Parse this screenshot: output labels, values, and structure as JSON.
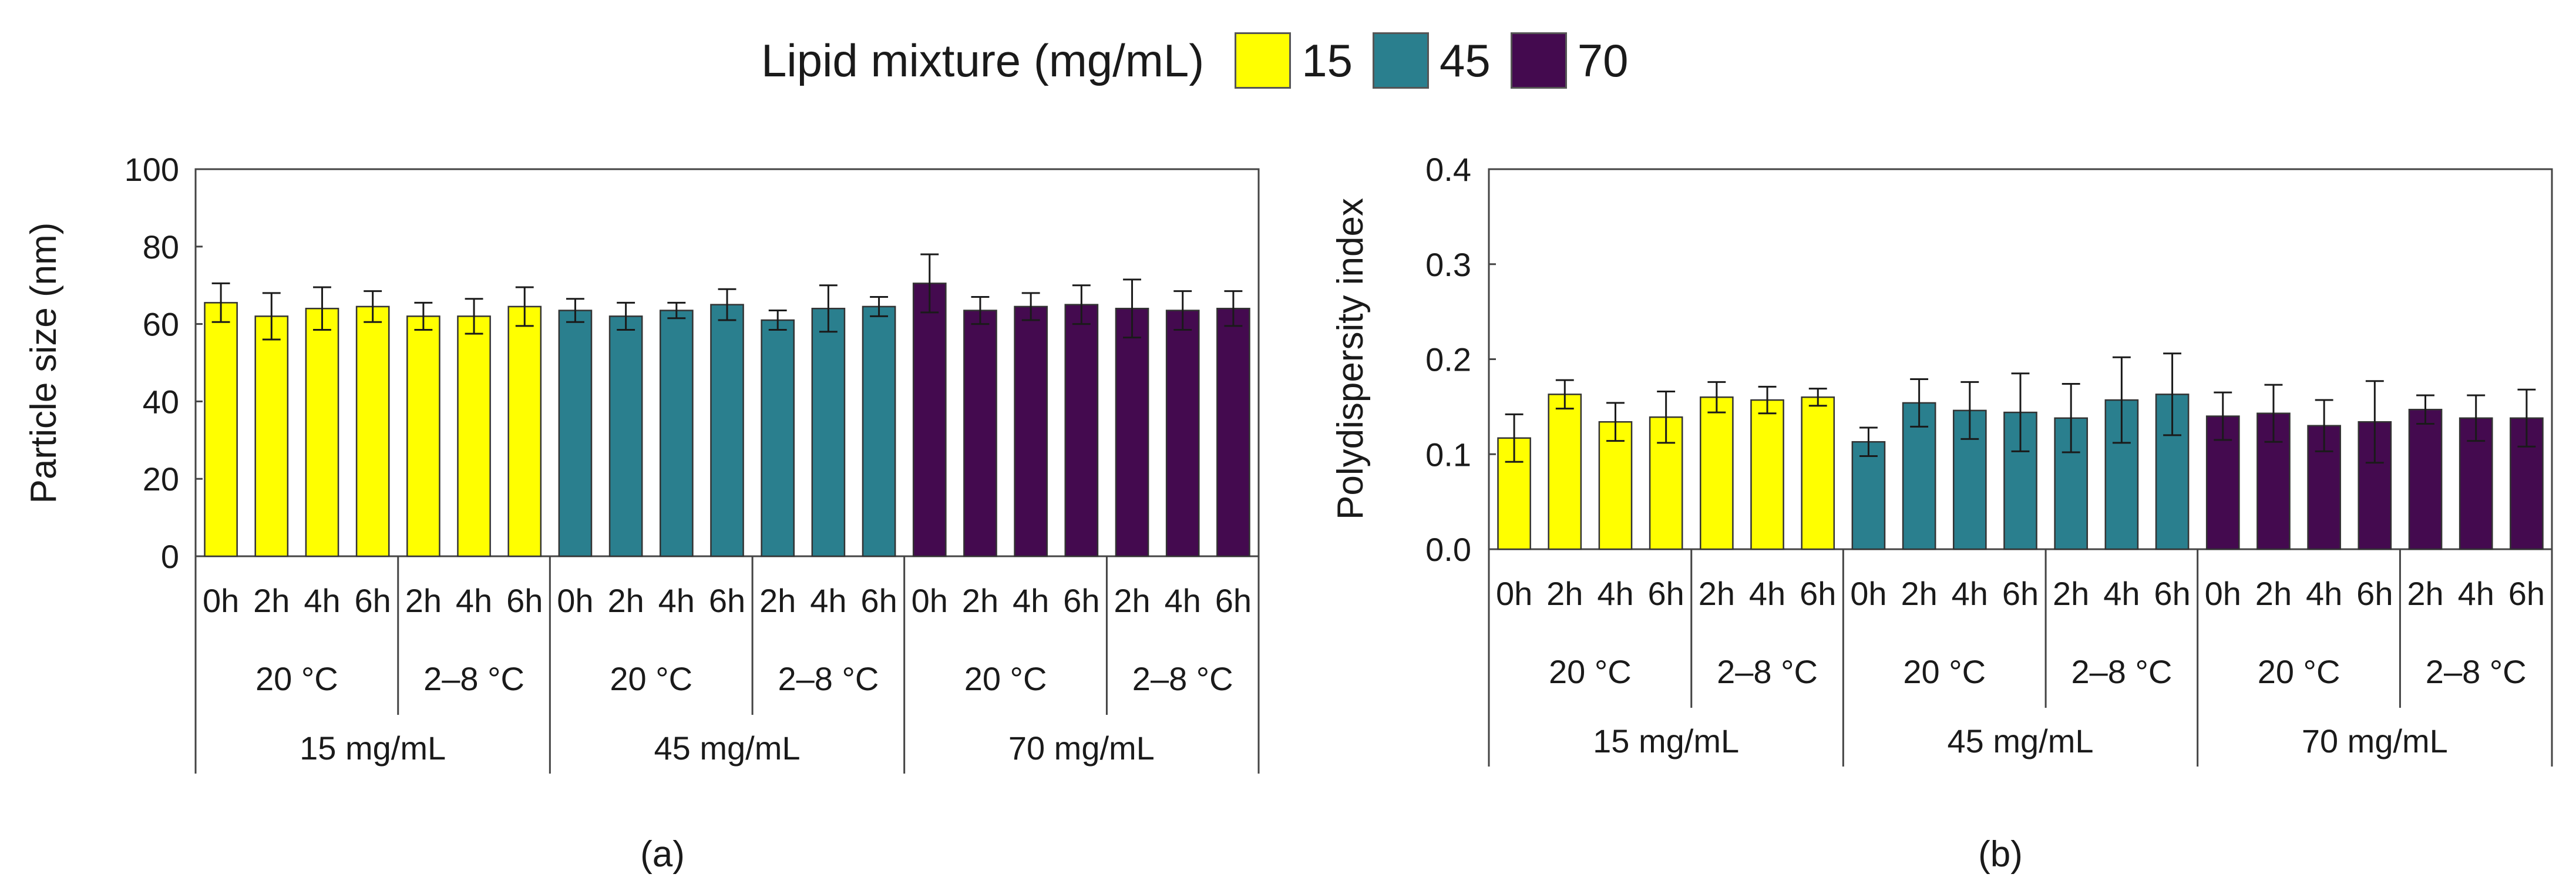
{
  "legend": {
    "title": "Lipid mixture (mg/mL)",
    "items": [
      {
        "label": "15",
        "color": "#ffff00"
      },
      {
        "label": "45",
        "color": "#2a7f8e"
      },
      {
        "label": "70",
        "color": "#440a4f"
      }
    ]
  },
  "chart_data": [
    {
      "type": "bar",
      "panel_label": "(a)",
      "title": "",
      "xlabel": "",
      "ylabel": "Particle size (nm)",
      "ylim": [
        0,
        100
      ],
      "yticks": [
        0,
        20,
        40,
        60,
        80,
        100
      ],
      "ytick_labels": [
        "0",
        "20",
        "40",
        "60",
        "80",
        "100"
      ],
      "group_labels": [
        "15 mg/mL",
        "45 mg/mL",
        "70 mg/mL"
      ],
      "condition_labels": [
        "20 °C",
        "2–8 °C"
      ],
      "categories": [
        "0h",
        "2h",
        "4h",
        "6h",
        "2h",
        "4h",
        "6h",
        "0h",
        "2h",
        "4h",
        "6h",
        "2h",
        "4h",
        "6h",
        "0h",
        "2h",
        "4h",
        "6h",
        "2h",
        "4h",
        "6h"
      ],
      "series_index": [
        0,
        0,
        0,
        0,
        0,
        0,
        0,
        1,
        1,
        1,
        1,
        1,
        1,
        1,
        2,
        2,
        2,
        2,
        2,
        2,
        2
      ],
      "values": [
        65.5,
        62,
        64,
        64.5,
        62,
        62,
        64.5,
        63.5,
        62,
        63.5,
        65,
        61,
        64,
        64.5,
        70.5,
        63.5,
        64.5,
        65,
        64,
        63.5,
        64
      ],
      "errors": [
        5,
        6,
        5.5,
        4,
        3.5,
        4.5,
        5,
        3,
        3.5,
        2,
        4,
        2.5,
        6,
        2.5,
        7.5,
        3.5,
        3.5,
        5,
        7.5,
        5,
        4.5
      ]
    },
    {
      "type": "bar",
      "panel_label": "(b)",
      "title": "",
      "xlabel": "",
      "ylabel": "Polydispersity index",
      "ylim": [
        0,
        0.4
      ],
      "yticks": [
        0,
        0.1,
        0.2,
        0.3,
        0.4
      ],
      "ytick_labels": [
        "0.0",
        "0.1",
        "0.2",
        "0.3",
        "0.4"
      ],
      "group_labels": [
        "15 mg/mL",
        "45 mg/mL",
        "70 mg/mL"
      ],
      "condition_labels": [
        "20 °C",
        "2–8 °C"
      ],
      "categories": [
        "0h",
        "2h",
        "4h",
        "6h",
        "2h",
        "4h",
        "6h",
        "0h",
        "2h",
        "4h",
        "6h",
        "2h",
        "4h",
        "6h",
        "0h",
        "2h",
        "4h",
        "6h",
        "2h",
        "4h",
        "6h"
      ],
      "series_index": [
        0,
        0,
        0,
        0,
        0,
        0,
        0,
        1,
        1,
        1,
        1,
        1,
        1,
        1,
        2,
        2,
        2,
        2,
        2,
        2,
        2
      ],
      "values": [
        0.117,
        0.163,
        0.134,
        0.139,
        0.16,
        0.157,
        0.16,
        0.113,
        0.154,
        0.146,
        0.144,
        0.138,
        0.157,
        0.163,
        0.14,
        0.143,
        0.13,
        0.134,
        0.147,
        0.138,
        0.138
      ],
      "errors": [
        0.025,
        0.015,
        0.02,
        0.027,
        0.016,
        0.014,
        0.009,
        0.015,
        0.025,
        0.03,
        0.041,
        0.036,
        0.045,
        0.043,
        0.025,
        0.03,
        0.027,
        0.043,
        0.015,
        0.024,
        0.03
      ]
    }
  ]
}
